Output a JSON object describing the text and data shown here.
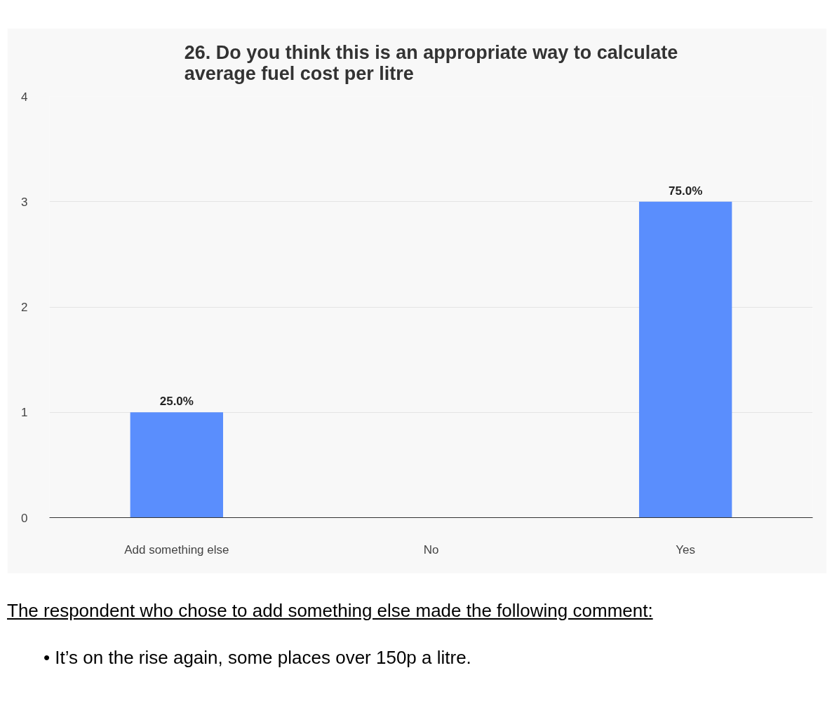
{
  "chart_data": {
    "type": "bar",
    "title": "26. Do you think this is an appropriate way to calculate\naverage fuel cost per litre",
    "categories": [
      "Add something else",
      "No",
      "Yes"
    ],
    "values": [
      1,
      0,
      3
    ],
    "color": "#5a8efd",
    "ylim": [
      0,
      4
    ],
    "yticks": [
      0,
      1,
      2,
      3,
      4
    ],
    "grid": "y",
    "annotations": [
      {
        "text": "25.0%",
        "x": "Add something else",
        "y": 1
      },
      {
        "text": "75.0%",
        "x": "Yes",
        "y": 3
      },
      "The respondent who chose to add something else made the following comment:",
      "• It’s on the rise again, some places over 150p a litre."
    ]
  }
}
